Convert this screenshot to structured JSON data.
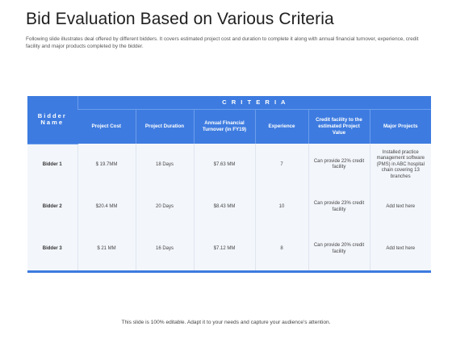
{
  "slide": {
    "title": "Bid Evaluation Based on Various Criteria",
    "subtitle": "Following slide illustrates deal offered by different bidders. It covers estimated project cost and duration to complete it along with annual financial turnover, experience, credit facility and major products completed by the bidder.",
    "footer": "This slide is 100% editable. Adapt it to your needs and capture your audience’s attention."
  },
  "table": {
    "criteria_label": "C R I T E R I A",
    "first_col_header": "Bidder Name",
    "columns": [
      "Project Cost",
      "Project Duration",
      "Annual Financial Turnover (in FY19)",
      "Experience",
      "Credit facility to the estimated Project Value",
      "Major Projects"
    ],
    "rows": [
      {
        "name": "Bidder 1",
        "cells": [
          "$ 19.7MM",
          "18 Days",
          "$7.63 MM",
          "7",
          "Can provide 22% credit facility",
          "Installed practice management software (PMS) in ABC hospital chain covering 13 branches"
        ]
      },
      {
        "name": "Bidder 2",
        "cells": [
          "$20.4 MM",
          "20 Days",
          "$8.43 MM",
          "10",
          "Can provide 23% credit facility",
          "Add text here"
        ]
      },
      {
        "name": "Bidder 3",
        "cells": [
          "$ 21 MM",
          "16 Days",
          "$7.12 MM",
          "8",
          "Can provide 20% credit facility",
          "Add text here"
        ]
      }
    ]
  }
}
